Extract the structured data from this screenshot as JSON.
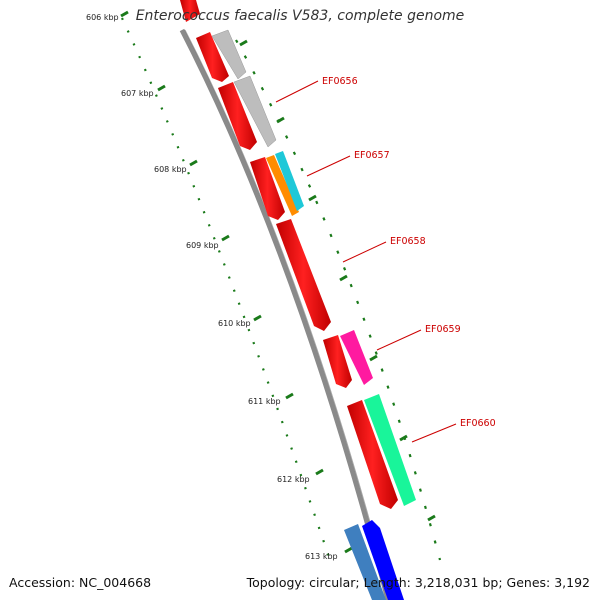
{
  "title": "Enterococcus faecalis V583, complete genome",
  "footer": {
    "accession": "Accession: NC_004668",
    "summary": "Topology: circular; Length: 3,218,031 bp; Genes: 3,192"
  },
  "kbp_labels": [
    "606 kbp",
    "607 kbp",
    "608 kbp",
    "609 kbp",
    "610 kbp",
    "611 kbp",
    "612 kbp",
    "613 kbp"
  ],
  "gene_labels": [
    "EF0656",
    "EF0657",
    "EF0658",
    "EF0659",
    "EF0660"
  ],
  "colors": {
    "backbone": "#8a8a8a",
    "tick": "#1a7a1a",
    "cds_forward": "#ff0000",
    "label": "#cc0000",
    "gray_feature": "#b8b8b8",
    "orange_feature": "#ff8c00",
    "cyan_feature": "#1ec8d8",
    "magenta_feature": "#ff1aa0",
    "mint_feature": "#19f59a",
    "steelblue_feature": "#3f7fbf",
    "blue_feature": "#0000ff"
  }
}
